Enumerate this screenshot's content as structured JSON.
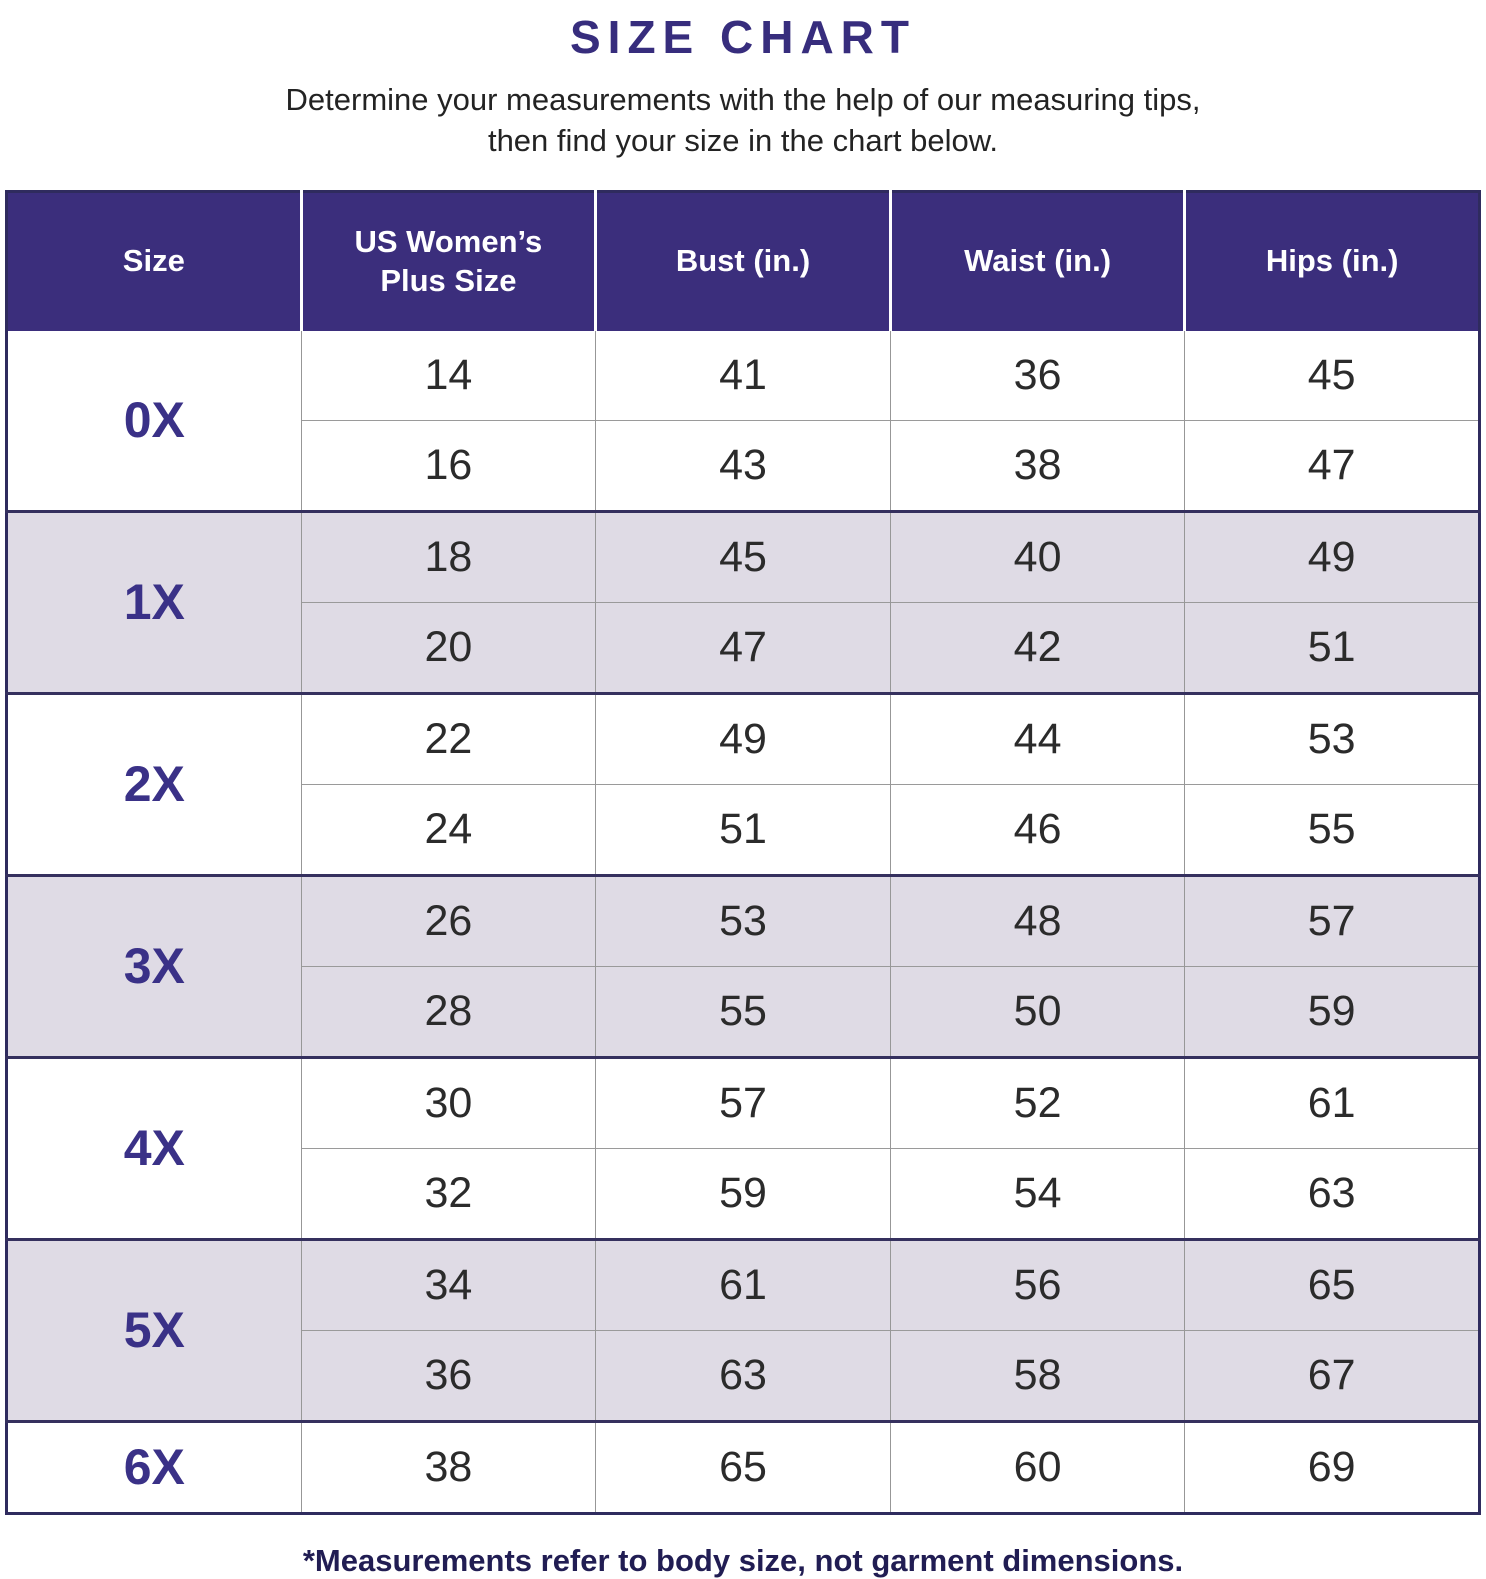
{
  "title": "SIZE CHART",
  "subtitle": {
    "line1": "Determine your measurements with the help of our measuring tips,",
    "line2": "then find your size in the chart below."
  },
  "footnote": "*Measurements refer to body size, not garment dimensions.",
  "colors": {
    "header_bg": "#3B2E7C",
    "header_text": "#FFFFFF",
    "shaded_row_bg": "#DFDBE5",
    "size_label_text": "#3A3187",
    "title_text": "#372D7D",
    "footnote_text": "#211D53",
    "body_text": "#2B2B2B",
    "table_border": "#2F2B5E"
  },
  "chart_data": {
    "type": "table",
    "title": "SIZE CHART",
    "columns": [
      "Size",
      "US Women’s Plus Size",
      "Bust (in.)",
      "Waist (in.)",
      "Hips (in.)"
    ],
    "groups": [
      {
        "size": "0X",
        "shaded": false,
        "rows": [
          [
            "14",
            "41",
            "36",
            "45"
          ],
          [
            "16",
            "43",
            "38",
            "47"
          ]
        ]
      },
      {
        "size": "1X",
        "shaded": true,
        "rows": [
          [
            "18",
            "45",
            "40",
            "49"
          ],
          [
            "20",
            "47",
            "42",
            "51"
          ]
        ]
      },
      {
        "size": "2X",
        "shaded": false,
        "rows": [
          [
            "22",
            "49",
            "44",
            "53"
          ],
          [
            "24",
            "51",
            "46",
            "55"
          ]
        ]
      },
      {
        "size": "3X",
        "shaded": true,
        "rows": [
          [
            "26",
            "53",
            "48",
            "57"
          ],
          [
            "28",
            "55",
            "50",
            "59"
          ]
        ]
      },
      {
        "size": "4X",
        "shaded": false,
        "rows": [
          [
            "30",
            "57",
            "52",
            "61"
          ],
          [
            "32",
            "59",
            "54",
            "63"
          ]
        ]
      },
      {
        "size": "5X",
        "shaded": true,
        "rows": [
          [
            "34",
            "61",
            "56",
            "65"
          ],
          [
            "36",
            "63",
            "58",
            "67"
          ]
        ]
      },
      {
        "size": "6X",
        "shaded": false,
        "rows": [
          [
            "38",
            "65",
            "60",
            "69"
          ]
        ]
      }
    ]
  }
}
